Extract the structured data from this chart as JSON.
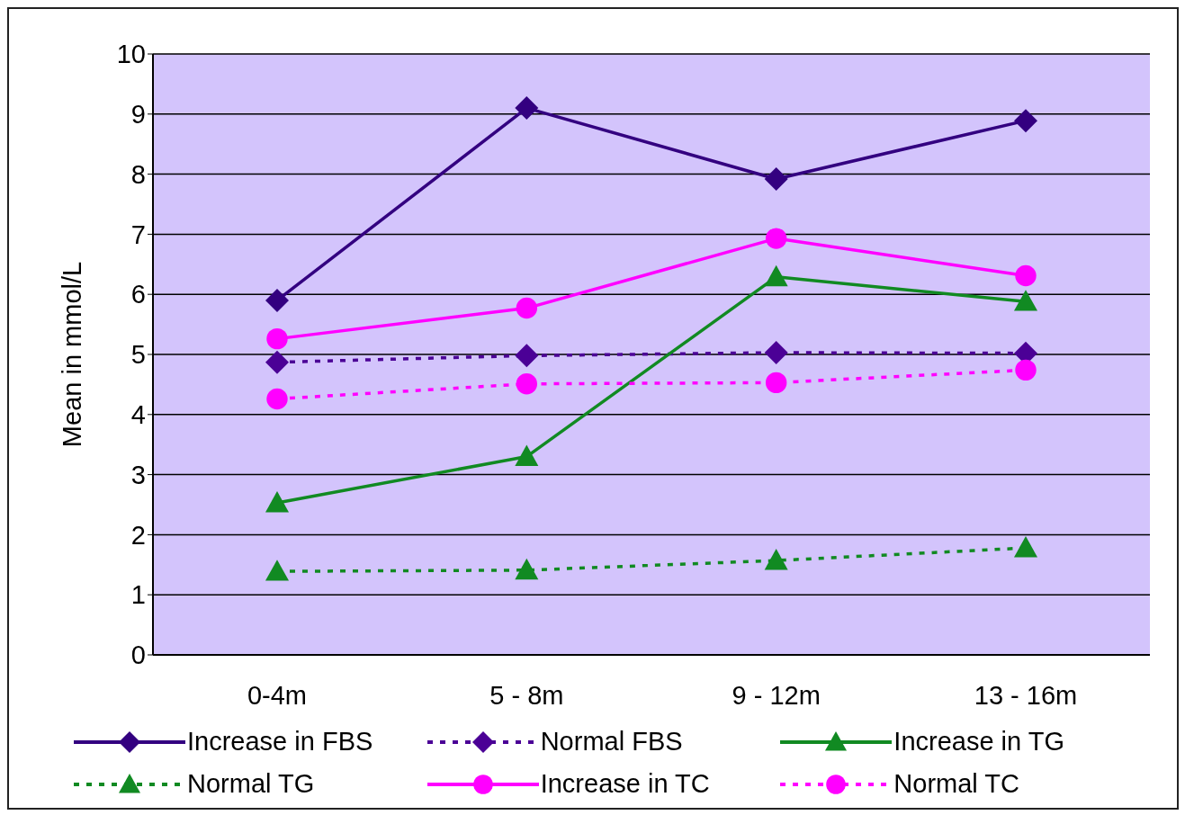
{
  "chart_data": {
    "type": "line",
    "ylabel": "Mean in mmol/L",
    "categories": [
      "0-4m",
      "5 - 8m",
      "9 - 12m",
      "13 - 16m"
    ],
    "ylim": [
      0,
      10
    ],
    "yticks": [
      0,
      1,
      2,
      3,
      4,
      5,
      6,
      7,
      8,
      9,
      10
    ],
    "grid": "y",
    "legend": "bottom",
    "series": [
      {
        "name": "Increase in FBS",
        "color": "#330080",
        "marker": "diamond",
        "line_style": "solid",
        "values": [
          5.9,
          9.1,
          7.92,
          8.89
        ]
      },
      {
        "name": "Normal FBS",
        "color": "#4b0096",
        "marker": "diamond",
        "line_style": "dotted",
        "values": [
          4.87,
          4.98,
          5.03,
          5.02
        ]
      },
      {
        "name": "Increase in TG",
        "color": "#118a22",
        "marker": "triangle",
        "line_style": "solid",
        "values": [
          2.53,
          3.3,
          6.29,
          5.88
        ]
      },
      {
        "name": "Normal TG",
        "color": "#118a22",
        "marker": "triangle",
        "line_style": "dotted",
        "values": [
          1.39,
          1.41,
          1.57,
          1.78
        ]
      },
      {
        "name": "Increase in TC",
        "color": "#ff00ff",
        "marker": "circle",
        "line_style": "solid",
        "values": [
          5.26,
          5.77,
          6.93,
          6.31
        ]
      },
      {
        "name": "Normal TC",
        "color": "#ff00ff",
        "marker": "circle",
        "line_style": "dotted",
        "values": [
          4.26,
          4.51,
          4.53,
          4.74
        ]
      }
    ]
  }
}
